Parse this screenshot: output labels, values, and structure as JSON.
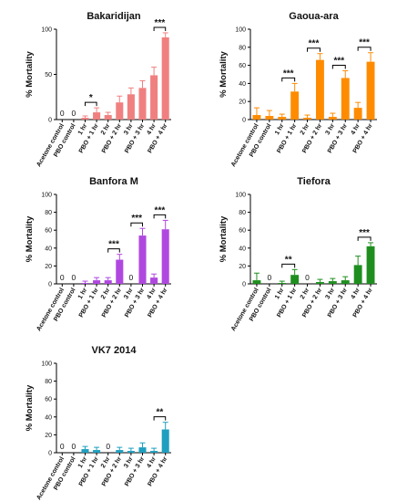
{
  "chart_data": [
    {
      "type": "bar",
      "title": "Bakaridijan",
      "ylabel": "% Mortality",
      "ylim": [
        0,
        100
      ],
      "yticks": [
        "0",
        "50",
        "100"
      ],
      "color": "#f08080",
      "categories": [
        "Acetone control",
        "PBO control",
        "1 hr",
        "PBO + 1 hr",
        "2 hr",
        "PBO + 2 hr",
        "3 hr",
        "PBO + 3 hr",
        "4 hr",
        "PBO + 4 hr"
      ],
      "values": [
        0,
        0,
        2,
        8,
        5,
        19,
        28,
        35,
        49,
        91
      ],
      "errors": [
        0,
        0,
        2,
        5,
        3,
        7,
        7,
        8,
        9,
        5
      ],
      "zero_labels": [
        "0",
        "0",
        "",
        "",
        "",
        "",
        "",
        "",
        "",
        ""
      ],
      "significance": [
        {
          "from": 2,
          "to": 3,
          "label": "*"
        },
        {
          "from": 8,
          "to": 9,
          "label": "***"
        }
      ]
    },
    {
      "type": "bar",
      "title": "Gaoua-ara",
      "ylabel": "% Mortality",
      "ylim": [
        0,
        100
      ],
      "yticks": [
        "0",
        "20",
        "40",
        "60",
        "80",
        "100"
      ],
      "color": "#ff8c00",
      "categories": [
        "Acetone control",
        "PBO control",
        "1 hr",
        "PBO + 1 hr",
        "2 hr",
        "PBO + 2 hr",
        "3 hr",
        "PBO + 3 hr",
        "4 hr",
        "PBO + 4 hr"
      ],
      "values": [
        5,
        4,
        3,
        31,
        2,
        66,
        3,
        46,
        13,
        64
      ],
      "errors": [
        8,
        6,
        3,
        9,
        3,
        7,
        4,
        8,
        6,
        10
      ],
      "zero_labels": [
        "",
        "",
        "",
        "",
        "",
        "",
        "",
        "",
        "",
        ""
      ],
      "significance": [
        {
          "from": 2,
          "to": 3,
          "label": "***"
        },
        {
          "from": 4,
          "to": 5,
          "label": "***"
        },
        {
          "from": 6,
          "to": 7,
          "label": "***"
        },
        {
          "from": 8,
          "to": 9,
          "label": "***"
        }
      ]
    },
    {
      "type": "bar",
      "title": "Banfora M",
      "ylabel": "% Mortality",
      "ylim": [
        0,
        100
      ],
      "yticks": [
        "0",
        "20",
        "40",
        "60",
        "80",
        "100"
      ],
      "color": "#b048e0",
      "categories": [
        "Acetone control",
        "PBO control",
        "1 hr",
        "PBO + 1 hr",
        "2 hr",
        "PBO + 2 hr",
        "3 hr",
        "PBO + 3 hr",
        "4 hr",
        "PBO + 4 hr"
      ],
      "values": [
        0,
        0,
        1,
        4,
        4,
        27,
        0,
        54,
        7,
        61
      ],
      "errors": [
        0,
        0,
        2,
        3,
        3,
        6,
        0,
        8,
        4,
        10
      ],
      "zero_labels": [
        "0",
        "0",
        "",
        "",
        "",
        "",
        "0",
        "",
        "",
        ""
      ],
      "significance": [
        {
          "from": 4,
          "to": 5,
          "label": "***"
        },
        {
          "from": 6,
          "to": 7,
          "label": "***"
        },
        {
          "from": 8,
          "to": 9,
          "label": "***"
        }
      ]
    },
    {
      "type": "bar",
      "title": "Tiefora",
      "ylabel": "% Mortality",
      "ylim": [
        0,
        100
      ],
      "yticks": [
        "0",
        "20",
        "40",
        "60",
        "80",
        "100"
      ],
      "color": "#1e8f1e",
      "categories": [
        "Acetone control",
        "PBO control",
        "1 hr",
        "PBO + 1 hr",
        "2 hr",
        "PBO + 2 hr",
        "3 hr",
        "PBO + 3 hr",
        "4 hr",
        "PBO + 4 hr"
      ],
      "values": [
        4,
        0,
        1,
        10,
        0,
        2,
        3,
        4,
        21,
        42
      ],
      "errors": [
        8,
        0,
        2,
        6,
        0,
        3,
        3,
        4,
        10,
        4
      ],
      "zero_labels": [
        "",
        "0",
        "",
        "",
        "0",
        "",
        "",
        "",
        "",
        ""
      ],
      "significance": [
        {
          "from": 2,
          "to": 3,
          "label": "**"
        },
        {
          "from": 8,
          "to": 9,
          "label": "***"
        }
      ]
    },
    {
      "type": "bar",
      "title": "VK7 2014",
      "ylabel": "% Mortality",
      "ylim": [
        0,
        100
      ],
      "yticks": [
        "0",
        "20",
        "40",
        "60",
        "80",
        "100"
      ],
      "color": "#1e9fbf",
      "categories": [
        "Acetone control",
        "PBO control",
        "1 hr",
        "PBO + 1 hr",
        "2 hr",
        "PBO + 2 hr",
        "3 hr",
        "PBO + 3 hr",
        "4 hr",
        "PBO + 4 hr"
      ],
      "values": [
        0,
        0,
        4,
        3,
        0,
        3,
        2,
        6,
        2,
        26
      ],
      "errors": [
        0,
        0,
        3,
        3,
        0,
        3,
        3,
        5,
        3,
        8
      ],
      "zero_labels": [
        "0",
        "0",
        "",
        "",
        "0",
        "",
        "",
        "",
        "",
        ""
      ],
      "significance": [
        {
          "from": 8,
          "to": 9,
          "label": "**"
        }
      ]
    }
  ]
}
